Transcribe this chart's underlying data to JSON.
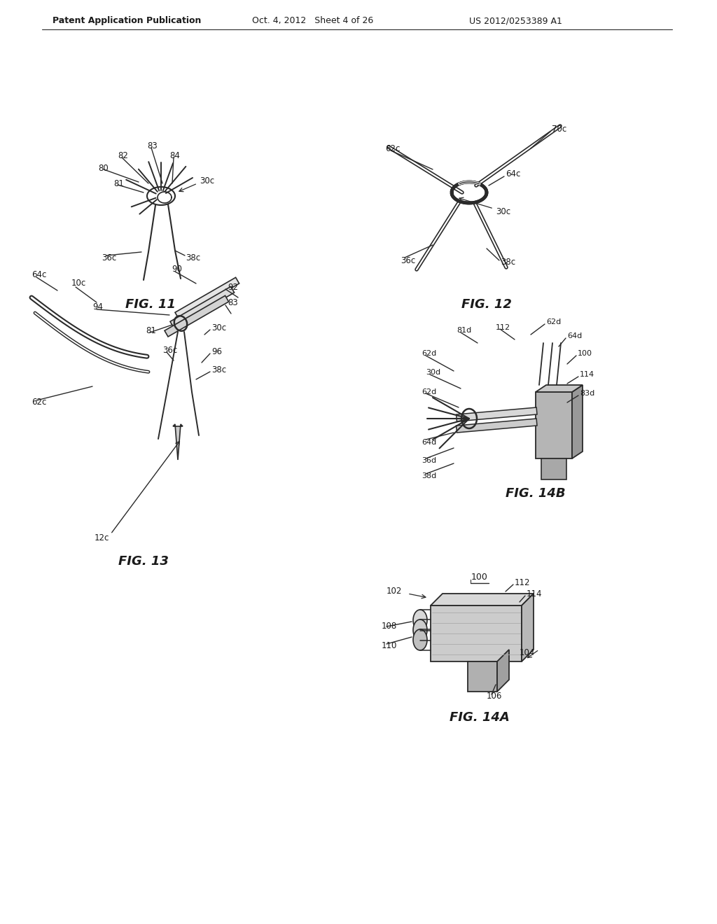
{
  "bg_color": "#ffffff",
  "line_color": "#2a2a2a",
  "label_color": "#1a1a1a",
  "header_left": "Patent Application Publication",
  "header_mid": "Oct. 4, 2012   Sheet 4 of 26",
  "header_right": "US 2012/0253389 A1",
  "fig11_title": "FIG. 11",
  "fig12_title": "FIG. 12",
  "fig13_title": "FIG. 13",
  "fig14a_title": "FIG. 14A",
  "fig14b_title": "FIG. 14B"
}
